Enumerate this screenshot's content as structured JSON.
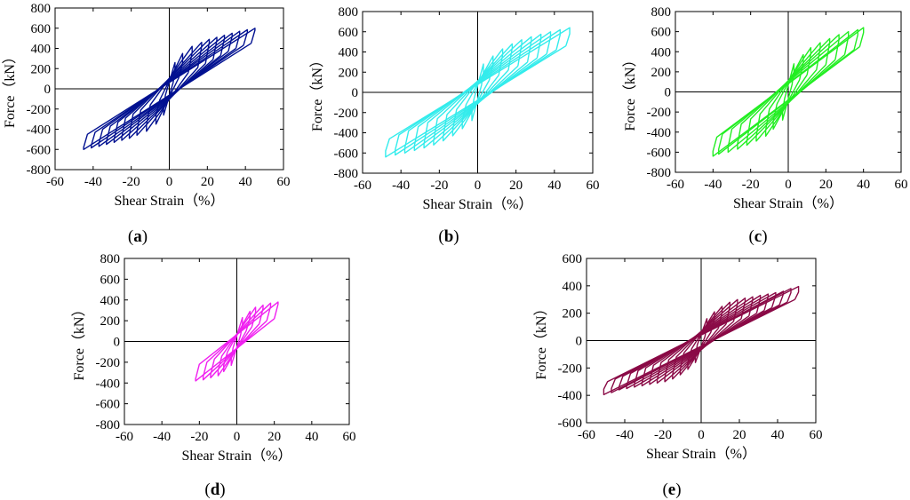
{
  "chart_data": [
    {
      "type": "line",
      "panel_label": "a",
      "xlabel": "Shear Strain（%）",
      "ylabel": "Force（kN）",
      "xlim": [
        -60,
        60
      ],
      "ylim": [
        -800,
        800
      ],
      "xticks": [
        -60,
        -40,
        -20,
        0,
        20,
        40,
        60
      ],
      "yticks": [
        -800,
        -600,
        -400,
        -200,
        0,
        200,
        400,
        600,
        800
      ],
      "grid": false,
      "color": "#001090",
      "series": [
        {
          "x": [
            2,
            3,
            3,
            -2,
            -3,
            -3,
            2
          ],
          "y": [
            60,
            180,
            260,
            -60,
            -180,
            -260,
            60
          ]
        },
        {
          "x": [
            5,
            7,
            7,
            -5,
            -7,
            -7,
            5
          ],
          "y": [
            110,
            260,
            350,
            -110,
            -260,
            -350,
            110
          ]
        },
        {
          "x": [
            10,
            12,
            12,
            -10,
            -12,
            -12,
            10
          ],
          "y": [
            160,
            360,
            420,
            -160,
            -360,
            -420,
            160
          ]
        },
        {
          "x": [
            15,
            17,
            17,
            -15,
            -17,
            -17,
            15
          ],
          "y": [
            210,
            420,
            460,
            -210,
            -420,
            -460,
            210
          ]
        },
        {
          "x": [
            19,
            21,
            21,
            -19,
            -21,
            -21,
            19
          ],
          "y": [
            250,
            460,
            490,
            -250,
            -460,
            -490,
            250
          ]
        },
        {
          "x": [
            23,
            25,
            25,
            -23,
            -25,
            -25,
            23
          ],
          "y": [
            290,
            480,
            510,
            -290,
            -480,
            -510,
            290
          ]
        },
        {
          "x": [
            27,
            29,
            29,
            -27,
            -29,
            -29,
            27
          ],
          "y": [
            330,
            500,
            530,
            -330,
            -500,
            -530,
            330
          ]
        },
        {
          "x": [
            31,
            33,
            33,
            -31,
            -33,
            -33,
            31
          ],
          "y": [
            370,
            520,
            550,
            -370,
            -520,
            -550,
            370
          ]
        },
        {
          "x": [
            35,
            37,
            37,
            -35,
            -37,
            -37,
            35
          ],
          "y": [
            400,
            540,
            570,
            -400,
            -540,
            -570,
            400
          ]
        },
        {
          "x": [
            39,
            41,
            41,
            -39,
            -41,
            -41,
            39
          ],
          "y": [
            430,
            560,
            585,
            -430,
            -560,
            -585,
            430
          ]
        },
        {
          "x": [
            43,
            45,
            45,
            -43,
            -45,
            -45,
            43
          ],
          "y": [
            450,
            580,
            600,
            -450,
            -580,
            -600,
            450
          ]
        }
      ]
    },
    {
      "type": "line",
      "panel_label": "b",
      "xlabel": "Shear Strain（%）",
      "ylabel": "Force（kN）",
      "xlim": [
        -60,
        60
      ],
      "ylim": [
        -800,
        800
      ],
      "xticks": [
        -60,
        -40,
        -20,
        0,
        20,
        40,
        60
      ],
      "yticks": [
        -800,
        -600,
        -400,
        -200,
        0,
        200,
        400,
        600,
        800
      ],
      "grid": false,
      "color": "#33ecec",
      "series": [
        {
          "x": [
            2,
            3,
            3,
            -2,
            -3,
            -3,
            2
          ],
          "y": [
            70,
            200,
            280,
            -70,
            -200,
            -280,
            70
          ]
        },
        {
          "x": [
            6,
            8,
            8,
            -6,
            -8,
            -8,
            6
          ],
          "y": [
            120,
            280,
            360,
            -120,
            -280,
            -360,
            120
          ]
        },
        {
          "x": [
            11,
            13,
            13,
            -11,
            -13,
            -13,
            11
          ],
          "y": [
            170,
            370,
            430,
            -170,
            -370,
            -430,
            170
          ]
        },
        {
          "x": [
            16,
            18,
            18,
            -16,
            -18,
            -18,
            16
          ],
          "y": [
            220,
            440,
            480,
            -220,
            -440,
            -480,
            220
          ]
        },
        {
          "x": [
            21,
            23,
            23,
            -21,
            -23,
            -23,
            21
          ],
          "y": [
            260,
            480,
            520,
            -260,
            -480,
            -520,
            260
          ]
        },
        {
          "x": [
            26,
            28,
            28,
            -26,
            -28,
            -28,
            26
          ],
          "y": [
            300,
            510,
            550,
            -300,
            -510,
            -550,
            300
          ]
        },
        {
          "x": [
            31,
            33,
            33,
            -31,
            -33,
            -33,
            31
          ],
          "y": [
            340,
            530,
            575,
            -340,
            -530,
            -575,
            340
          ]
        },
        {
          "x": [
            36,
            38,
            38,
            -36,
            -38,
            -38,
            36
          ],
          "y": [
            380,
            550,
            600,
            -380,
            -550,
            -600,
            380
          ]
        },
        {
          "x": [
            41,
            43,
            43,
            -41,
            -43,
            -43,
            41
          ],
          "y": [
            420,
            570,
            620,
            -420,
            -570,
            -620,
            420
          ]
        },
        {
          "x": [
            46,
            48,
            48,
            -46,
            -48,
            -48,
            46
          ],
          "y": [
            460,
            580,
            640,
            -460,
            -580,
            -640,
            460
          ]
        }
      ]
    },
    {
      "type": "line",
      "panel_label": "c",
      "xlabel": "Shear Strain（%）",
      "ylabel": "Force（kN）",
      "xlim": [
        -60,
        60
      ],
      "ylim": [
        -800,
        800
      ],
      "xticks": [
        -60,
        -40,
        -20,
        0,
        20,
        40,
        60
      ],
      "yticks": [
        -800,
        -600,
        -400,
        -200,
        0,
        200,
        400,
        600,
        800
      ],
      "grid": false,
      "color": "#22ee22",
      "series": [
        {
          "x": [
            2,
            3,
            3,
            -2,
            -3,
            -3,
            2
          ],
          "y": [
            70,
            200,
            280,
            -70,
            -200,
            -280,
            70
          ]
        },
        {
          "x": [
            6,
            8,
            8,
            -6,
            -8,
            -8,
            6
          ],
          "y": [
            120,
            290,
            370,
            -120,
            -290,
            -370,
            120
          ]
        },
        {
          "x": [
            10,
            12,
            12,
            -10,
            -12,
            -12,
            10
          ],
          "y": [
            170,
            380,
            440,
            -170,
            -380,
            -440,
            170
          ]
        },
        {
          "x": [
            15,
            17,
            17,
            -15,
            -17,
            -17,
            15
          ],
          "y": [
            220,
            440,
            490,
            -220,
            -440,
            -490,
            220
          ]
        },
        {
          "x": [
            20,
            22,
            22,
            -20,
            -22,
            -22,
            20
          ],
          "y": [
            270,
            490,
            530,
            -270,
            -490,
            -530,
            270
          ]
        },
        {
          "x": [
            25,
            27,
            27,
            -25,
            -27,
            -27,
            25
          ],
          "y": [
            320,
            520,
            570,
            -320,
            -520,
            -570,
            320
          ]
        },
        {
          "x": [
            30,
            32,
            32,
            -30,
            -32,
            -32,
            30
          ],
          "y": [
            370,
            550,
            600,
            -370,
            -550,
            -600,
            370
          ]
        },
        {
          "x": [
            35,
            37,
            37,
            -35,
            -37,
            -37,
            35
          ],
          "y": [
            420,
            570,
            620,
            -420,
            -570,
            -620,
            420
          ]
        },
        {
          "x": [
            38,
            40,
            40,
            -38,
            -40,
            -40,
            38
          ],
          "y": [
            450,
            590,
            640,
            -450,
            -590,
            -640,
            450
          ]
        }
      ]
    },
    {
      "type": "line",
      "panel_label": "d",
      "xlabel": "Shear Strain（%）",
      "ylabel": "Force（kN）",
      "xlim": [
        -60,
        60
      ],
      "ylim": [
        -800,
        800
      ],
      "xticks": [
        -60,
        -40,
        -20,
        0,
        20,
        40,
        60
      ],
      "yticks": [
        -800,
        -600,
        -400,
        -200,
        0,
        200,
        400,
        600,
        800
      ],
      "grid": false,
      "color": "#f020f0",
      "series": [
        {
          "x": [
            2,
            3,
            3,
            -2,
            -3,
            -3,
            2
          ],
          "y": [
            60,
            170,
            230,
            -60,
            -170,
            -230,
            60
          ]
        },
        {
          "x": [
            5,
            7,
            7,
            -5,
            -7,
            -7,
            5
          ],
          "y": [
            100,
            230,
            290,
            -100,
            -230,
            -290,
            100
          ]
        },
        {
          "x": [
            8,
            10,
            10,
            -8,
            -10,
            -10,
            8
          ],
          "y": [
            140,
            280,
            330,
            -140,
            -280,
            -330,
            140
          ]
        },
        {
          "x": [
            12,
            14,
            14,
            -12,
            -14,
            -14,
            12
          ],
          "y": [
            170,
            320,
            350,
            -170,
            -320,
            -350,
            170
          ]
        },
        {
          "x": [
            16,
            18,
            18,
            -16,
            -18,
            -18,
            16
          ],
          "y": [
            200,
            340,
            370,
            -200,
            -340,
            -370,
            200
          ]
        },
        {
          "x": [
            20,
            22,
            22,
            -20,
            -22,
            -22,
            20
          ],
          "y": [
            220,
            360,
            380,
            -220,
            -360,
            -380,
            220
          ]
        }
      ]
    },
    {
      "type": "line",
      "panel_label": "e",
      "xlabel": "Shear Strain（%）",
      "ylabel": "Force（kN）",
      "xlim": [
        -60,
        60
      ],
      "ylim": [
        -600,
        600
      ],
      "xticks": [
        -60,
        -40,
        -20,
        0,
        20,
        40,
        60
      ],
      "yticks": [
        -600,
        -400,
        -200,
        0,
        200,
        400,
        600
      ],
      "grid": false,
      "color": "#8a0a46",
      "series": [
        {
          "x": [
            2,
            3,
            3,
            -2,
            -3,
            -3,
            2
          ],
          "y": [
            30,
            110,
            160,
            -30,
            -110,
            -160,
            30
          ]
        },
        {
          "x": [
            5,
            7,
            7,
            -5,
            -7,
            -7,
            5
          ],
          "y": [
            60,
            160,
            210,
            -60,
            -160,
            -210,
            60
          ]
        },
        {
          "x": [
            9,
            11,
            11,
            -9,
            -11,
            -11,
            9
          ],
          "y": [
            90,
            210,
            250,
            -90,
            -210,
            -250,
            90
          ]
        },
        {
          "x": [
            13,
            15,
            15,
            -13,
            -15,
            -15,
            13
          ],
          "y": [
            120,
            250,
            280,
            -120,
            -250,
            -280,
            120
          ]
        },
        {
          "x": [
            17,
            19,
            19,
            -17,
            -19,
            -19,
            17
          ],
          "y": [
            140,
            270,
            300,
            -140,
            -270,
            -300,
            140
          ]
        },
        {
          "x": [
            21,
            23,
            23,
            -21,
            -23,
            -23,
            21
          ],
          "y": [
            160,
            290,
            310,
            -160,
            -290,
            -310,
            160
          ]
        },
        {
          "x": [
            25,
            27,
            27,
            -25,
            -27,
            -27,
            25
          ],
          "y": [
            180,
            300,
            320,
            -180,
            -300,
            -320,
            180
          ]
        },
        {
          "x": [
            29,
            31,
            31,
            -29,
            -31,
            -31,
            29
          ],
          "y": [
            200,
            310,
            330,
            -200,
            -310,
            -330,
            200
          ]
        },
        {
          "x": [
            33,
            35,
            35,
            -33,
            -35,
            -35,
            33
          ],
          "y": [
            220,
            320,
            340,
            -220,
            -320,
            -340,
            220
          ]
        },
        {
          "x": [
            37,
            39,
            39,
            -37,
            -39,
            -39,
            37
          ],
          "y": [
            240,
            330,
            350,
            -240,
            -330,
            -350,
            240
          ]
        },
        {
          "x": [
            41,
            43,
            43,
            -41,
            -43,
            -43,
            41
          ],
          "y": [
            260,
            340,
            360,
            -260,
            -340,
            -360,
            260
          ]
        },
        {
          "x": [
            45,
            47,
            47,
            -45,
            -47,
            -47,
            45
          ],
          "y": [
            280,
            350,
            380,
            -280,
            -350,
            -380,
            280
          ]
        },
        {
          "x": [
            49,
            51,
            51,
            -49,
            -51,
            -51,
            49
          ],
          "y": [
            300,
            355,
            395,
            -300,
            -355,
            -395,
            300
          ]
        }
      ]
    }
  ]
}
